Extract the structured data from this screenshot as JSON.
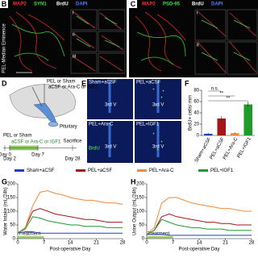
{
  "panels": {
    "b": {
      "letter": "B",
      "stains": [
        "MAP2",
        "SYN1",
        "BrdU",
        "DAPI"
      ],
      "side_label": "PEL-Median Eminence",
      "insets": [
        "i",
        "ii",
        "iii"
      ]
    },
    "c": {
      "letter": "C",
      "stains": [
        "MAP2",
        "PSD-95",
        "BrdU",
        "DAPI"
      ],
      "insets": [
        "i",
        "ii"
      ]
    },
    "d": {
      "letter": "D",
      "lesion": "PEL or Sham",
      "injection": "aCSF or Ara-C or IGF1",
      "organ": "Pituitary",
      "timeline": {
        "start": "PEL or Sham",
        "treatment": "aCSF or Ara-C or IGF1",
        "days": [
          "Day 0",
          "Day 2",
          "Day 7",
          "Day 28"
        ],
        "end": "Sacrifice"
      }
    },
    "e": {
      "letter": "E",
      "groups": [
        "Sham+aCSF",
        "PEL+aCSF",
        "PEL+Ara-C",
        "PEL+IGF1"
      ],
      "region": "3rd V",
      "stain": "BrdU"
    }
  },
  "chart_data": [
    {
      "type": "bar",
      "letter": "F",
      "ylabel": "BrdU+ cells/ mm",
      "categories": [
        "Sham+aCSF",
        "PEL+aCSF",
        "PEL+Ara-C",
        "PEL+IGF1"
      ],
      "values": [
        3,
        30,
        4,
        55
      ],
      "errors": [
        1,
        4,
        1,
        5
      ],
      "colors": [
        "#1f3fbf",
        "#a01818",
        "#f08a3c",
        "#1f9a2a"
      ],
      "ylim": [
        0,
        80
      ],
      "yticks": [
        0,
        20,
        40,
        60,
        80
      ],
      "annotations": [
        "n.s.",
        "**",
        "**"
      ]
    },
    {
      "type": "line",
      "letter": "G",
      "ylabel": "Water Intake (mL/24h)",
      "xlabel": "Post-operative Day",
      "x": [
        0,
        2,
        4,
        6,
        8,
        10,
        12,
        14,
        16,
        18,
        20,
        22,
        24,
        26,
        28
      ],
      "xlim": [
        0,
        28
      ],
      "xticks": [
        0,
        7,
        14,
        21,
        28
      ],
      "ylim": [
        0,
        200
      ],
      "yticks": [
        0,
        50,
        100,
        150,
        200
      ],
      "annotation": "Treatment",
      "treatment_span": [
        0,
        7
      ],
      "series": [
        {
          "name": "Sham+aCSF",
          "color": "#1f3fbf",
          "values": [
            20,
            25,
            25,
            20,
            20,
            20,
            20,
            20,
            20,
            20,
            20,
            20,
            20,
            20,
            20
          ]
        },
        {
          "name": "PEL+aCSF",
          "color": "#a01818",
          "values": [
            20,
            40,
            100,
            110,
            100,
            90,
            85,
            80,
            75,
            70,
            70,
            65,
            60,
            60,
            60
          ]
        },
        {
          "name": "PEL+Ara-C",
          "color": "#f08a3c",
          "values": [
            20,
            40,
            120,
            170,
            175,
            165,
            160,
            150,
            145,
            140,
            140,
            135,
            130,
            130,
            125
          ]
        },
        {
          "name": "PEL+IGF1",
          "color": "#1f9a2a",
          "values": [
            20,
            35,
            80,
            75,
            65,
            60,
            55,
            50,
            50,
            45,
            45,
            45,
            40,
            40,
            40
          ]
        }
      ]
    },
    {
      "type": "line",
      "letter": "H",
      "ylabel": "Urine Output (mL/24h)",
      "xlabel": "Post-operative Day",
      "x": [
        0,
        2,
        4,
        6,
        8,
        10,
        12,
        14,
        16,
        18,
        20,
        22,
        24,
        26,
        28
      ],
      "xlim": [
        0,
        28
      ],
      "xticks": [
        0,
        7,
        14,
        21,
        28
      ],
      "ylim": [
        0,
        200
      ],
      "yticks": [
        0,
        50,
        100,
        150,
        200
      ],
      "annotation": "Treatment",
      "treatment_span": [
        0,
        7
      ],
      "series": [
        {
          "color": "#1f3fbf",
          "values": [
            15,
            15,
            15,
            12,
            12,
            12,
            12,
            12,
            12,
            12,
            12,
            12,
            12,
            12,
            12
          ]
        },
        {
          "color": "#a01818",
          "values": [
            15,
            30,
            80,
            90,
            80,
            75,
            70,
            65,
            60,
            60,
            55,
            55,
            50,
            50,
            50
          ]
        },
        {
          "color": "#f08a3c",
          "values": [
            15,
            40,
            130,
            150,
            150,
            140,
            130,
            125,
            120,
            115,
            110,
            110,
            105,
            100,
            100
          ]
        },
        {
          "color": "#1f9a2a",
          "values": [
            15,
            30,
            70,
            60,
            50,
            45,
            40,
            40,
            35,
            35,
            35,
            30,
            30,
            30,
            30
          ]
        }
      ]
    }
  ]
}
